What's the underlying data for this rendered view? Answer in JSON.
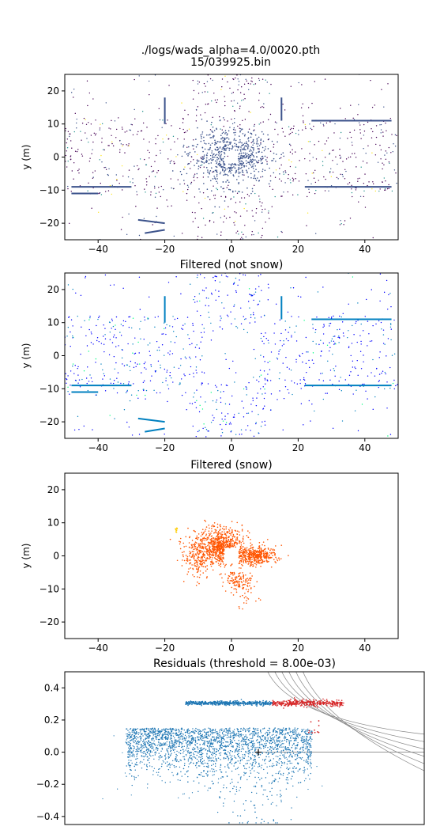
{
  "figure": {
    "title_line1": "./logs/wads_alpha=4.0/0020.pth",
    "title_line2": "15/039925.bin"
  },
  "chart_data": [
    {
      "type": "scatter",
      "title": "",
      "xlabel": "",
      "ylabel": "y (m)",
      "xlim": [
        -50,
        50
      ],
      "ylim": [
        -25,
        25
      ],
      "xticks": [
        -40,
        -20,
        0,
        20,
        40
      ],
      "yticks": [
        -20,
        -10,
        0,
        10,
        20
      ],
      "color_scale": "viridis",
      "description_series": [
        {
          "name": "",
          "rings_center": [
            0,
            0
          ]
        }
      ]
    },
    {
      "type": "scatter",
      "title": "Filtered (not snow)",
      "xlabel": "",
      "ylabel": "y (m)",
      "xlim": [
        -50,
        50
      ],
      "ylim": [
        -25,
        25
      ],
      "xticks": [
        -40,
        -20,
        0,
        20,
        40
      ],
      "yticks": [
        -20,
        -10,
        0,
        10,
        20
      ],
      "color_scale": "winter"
    },
    {
      "type": "scatter",
      "title": "Filtered (snow)",
      "xlabel": "",
      "ylabel": "y (m)",
      "xlim": [
        -50,
        50
      ],
      "ylim": [
        -25,
        25
      ],
      "xticks": [
        -40,
        -20,
        0,
        20,
        40
      ],
      "yticks": [
        -20,
        -10,
        0,
        10,
        20
      ],
      "color_scale": "autumn"
    },
    {
      "type": "scatter",
      "title": "Residuals (threshold = 8.00e-03)",
      "xlabel": "",
      "ylabel": "",
      "ylim": [
        -0.45,
        0.5
      ],
      "yticks": [
        -0.4,
        -0.2,
        0.0,
        0.2,
        0.4
      ],
      "ytick_labels": [
        "−0.4",
        "−0.2",
        "0.0",
        "0.2",
        "0.4"
      ],
      "series": [
        {
          "name": "",
          "color": "#1f77b4"
        },
        {
          "name": "",
          "color": "#d62728"
        }
      ],
      "marker": {
        "x": 0,
        "y": 0.0
      }
    }
  ],
  "colors": {
    "viridis_dark": "#440154",
    "viridis_mid": "#3b528b",
    "viridis_teal": "#21918c",
    "viridis_green": "#5ec962",
    "viridis_yellow": "#fde725",
    "winter_blue": "#0000ff",
    "winter_mid": "#0080c0",
    "winter_green": "#00ff80",
    "autumn_orange": "#ff5500",
    "autumn_yellow": "#ffcc00",
    "residual_blue": "#1f77b4",
    "residual_red": "#d62728"
  }
}
